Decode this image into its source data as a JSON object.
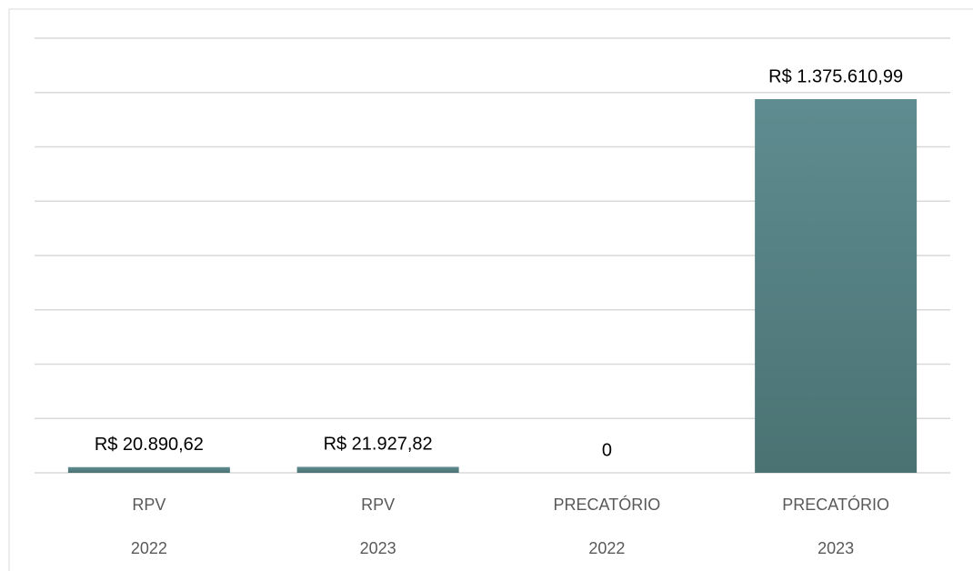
{
  "chart_data": {
    "type": "bar",
    "categories": [
      [
        "RPV",
        "2022"
      ],
      [
        "RPV",
        "2023"
      ],
      [
        "PRECATÓRIO",
        "2022"
      ],
      [
        "PRECATÓRIO",
        "2023"
      ]
    ],
    "values": [
      20890.62,
      21927.82,
      0,
      1375610.99
    ],
    "value_labels": [
      "R$ 20.890,62",
      "R$ 21.927,82",
      "0",
      "R$ 1.375.610,99"
    ],
    "color": "#568083",
    "ylim": [
      0,
      1600000
    ],
    "yticks": [
      0,
      200000,
      400000,
      600000,
      800000,
      1000000,
      1200000,
      1400000,
      1600000
    ],
    "grid": true
  }
}
